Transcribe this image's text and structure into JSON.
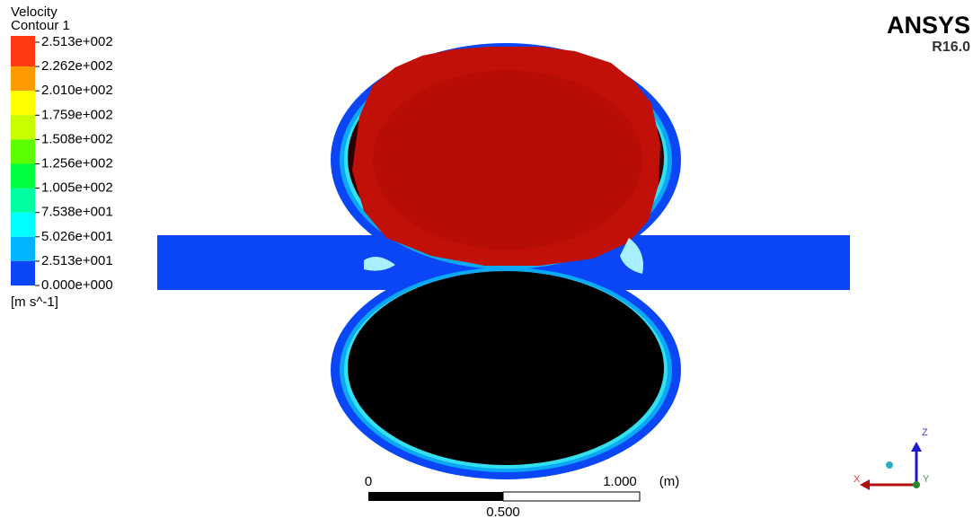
{
  "legend": {
    "title": "Velocity",
    "subtitle": "Contour 1",
    "levels": [
      "2.513e+002",
      "2.262e+002",
      "2.010e+002",
      "1.759e+002",
      "1.508e+002",
      "1.256e+002",
      "1.005e+002",
      "7.538e+001",
      "5.026e+001",
      "2.513e+001",
      "0.000e+000"
    ],
    "unit": "[m s^-1]"
  },
  "brand": {
    "name": "ANSYS",
    "version": "R16.0"
  },
  "scale_bar": {
    "start": "0",
    "end": "1.000",
    "unit": "(m)",
    "middle": "0.500"
  },
  "triad": {
    "z": "Z",
    "x": "X",
    "y": "Y"
  }
}
